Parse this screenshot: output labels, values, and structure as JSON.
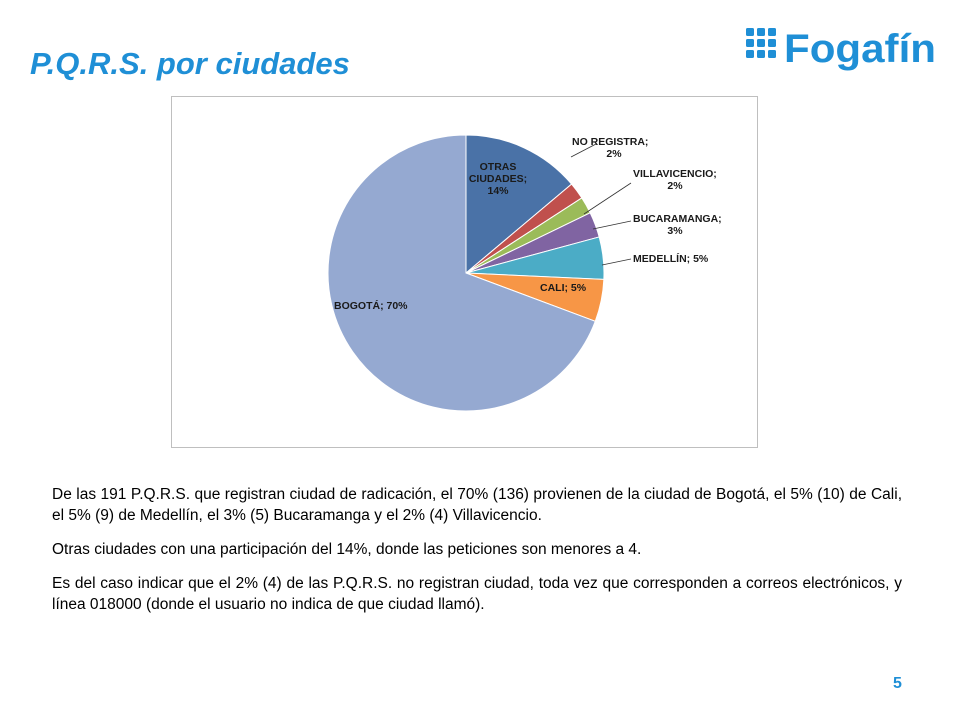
{
  "slide": {
    "title": "P.Q.R.S. por ciudades",
    "logo_text": "Fogafín",
    "page_number": "5"
  },
  "colors": {
    "title": "#1f8fd6",
    "logo": "#1f8fd6"
  },
  "chart_data": {
    "type": "pie",
    "slices": [
      {
        "name": "OTRAS CIUDADES",
        "value": 14,
        "color": "#4a72a7",
        "label_lines": [
          "OTRAS",
          "CIUDADES;",
          "14%"
        ]
      },
      {
        "name": "NO REGISTRA",
        "value": 2,
        "color": "#c0504d",
        "label_lines": [
          "NO REGISTRA;",
          "2%"
        ]
      },
      {
        "name": "VILLAVICENCIO",
        "value": 2,
        "color": "#9bbb59",
        "label_lines": [
          "VILLAVICENCIO;",
          "2%"
        ]
      },
      {
        "name": "BUCARAMANGA",
        "value": 3,
        "color": "#8064a2",
        "label_lines": [
          "BUCARAMANGA;",
          "3%"
        ]
      },
      {
        "name": "MEDELLÍN",
        "value": 5,
        "color": "#4bacc6",
        "label_lines": [
          "MEDELLÍN; 5%"
        ]
      },
      {
        "name": "CALI",
        "value": 5,
        "color": "#f79646",
        "label_lines": [
          "CALI; 5%"
        ]
      },
      {
        "name": "BOGOTÁ",
        "value": 70,
        "color": "#95a9d1",
        "label_lines": [
          "BOGOTÁ; 70%"
        ]
      }
    ],
    "start_angle": "12 o'clock",
    "direction": "clockwise"
  },
  "paragraphs": [
    "De las 191 P.Q.R.S. que registran ciudad de radicación, el 70% (136) provienen de la ciudad de Bogotá,  el 5% (10) de Cali, el 5% (9) de Medellín, el 3% (5) Bucaramanga y el 2% (4) Villavicencio.",
    "Otras ciudades con una participación del 14%, donde las peticiones son menores a 4.",
    "Es del caso indicar que el 2% (4) de las P.Q.R.S. no registran ciudad, toda vez que corresponden a correos electrónicos, y línea 018000 (donde el usuario no indica de que ciudad llamó)."
  ]
}
